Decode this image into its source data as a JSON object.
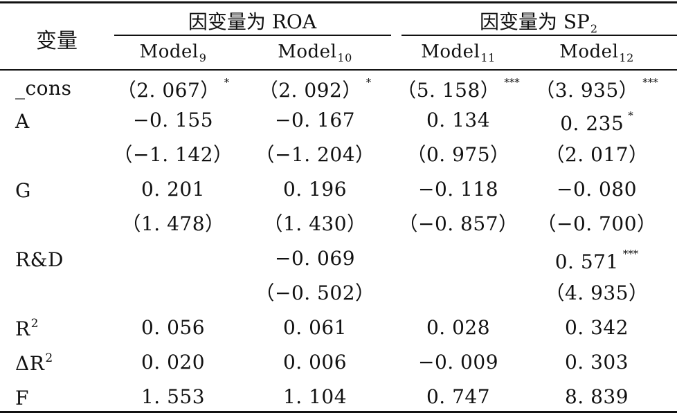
{
  "table": {
    "var_header": "变量",
    "groups": [
      {
        "title": "因变量为 ROA",
        "sub": ""
      },
      {
        "title": "因变量为 SP",
        "sub": "2"
      }
    ],
    "models": [
      {
        "name": "Model",
        "sub": "9"
      },
      {
        "name": "Model",
        "sub": "10"
      },
      {
        "name": "Model",
        "sub": "11"
      },
      {
        "name": "Model",
        "sub": "12"
      }
    ],
    "rows": [
      {
        "label": "_cons",
        "label_sup": "",
        "cells": [
          {
            "text": "（2. 067）",
            "stars": "*"
          },
          {
            "text": "（2. 092）",
            "stars": "*"
          },
          {
            "text": "（5. 158）",
            "stars": "***"
          },
          {
            "text": "（3. 935）",
            "stars": "***"
          }
        ]
      },
      {
        "label": "A",
        "label_sup": "",
        "cells": [
          {
            "text": "−0. 155",
            "stars": ""
          },
          {
            "text": "−0. 167",
            "stars": ""
          },
          {
            "text": "0. 134",
            "stars": ""
          },
          {
            "text": "0. 235",
            "stars": "*"
          }
        ]
      },
      {
        "label": "",
        "label_sup": "",
        "cells": [
          {
            "text": "（−1. 142）",
            "stars": ""
          },
          {
            "text": "（−1. 204）",
            "stars": ""
          },
          {
            "text": "（0. 975）",
            "stars": ""
          },
          {
            "text": "（2. 017）",
            "stars": ""
          }
        ]
      },
      {
        "label": "G",
        "label_sup": "",
        "cells": [
          {
            "text": "0. 201",
            "stars": ""
          },
          {
            "text": "0. 196",
            "stars": ""
          },
          {
            "text": "−0. 118",
            "stars": ""
          },
          {
            "text": "−0. 080",
            "stars": ""
          }
        ]
      },
      {
        "label": "",
        "label_sup": "",
        "cells": [
          {
            "text": "（1. 478）",
            "stars": ""
          },
          {
            "text": "（1. 430）",
            "stars": ""
          },
          {
            "text": "（−0. 857）",
            "stars": ""
          },
          {
            "text": "（−0. 700）",
            "stars": ""
          }
        ]
      },
      {
        "label": "R&D",
        "label_sup": "",
        "cells": [
          {
            "text": "",
            "stars": ""
          },
          {
            "text": "−0. 069",
            "stars": ""
          },
          {
            "text": "",
            "stars": ""
          },
          {
            "text": "0. 571",
            "stars": "***"
          }
        ]
      },
      {
        "label": "",
        "label_sup": "",
        "cells": [
          {
            "text": "",
            "stars": ""
          },
          {
            "text": "（−0. 502）",
            "stars": ""
          },
          {
            "text": "",
            "stars": ""
          },
          {
            "text": "（4. 935）",
            "stars": ""
          }
        ]
      },
      {
        "label": "R",
        "label_sup": "2",
        "cells": [
          {
            "text": "0. 056",
            "stars": ""
          },
          {
            "text": "0. 061",
            "stars": ""
          },
          {
            "text": "0. 028",
            "stars": ""
          },
          {
            "text": "0. 342",
            "stars": ""
          }
        ]
      },
      {
        "label": "ΔR",
        "label_sup": "2",
        "cells": [
          {
            "text": "0. 020",
            "stars": ""
          },
          {
            "text": "0. 006",
            "stars": ""
          },
          {
            "text": "−0. 009",
            "stars": ""
          },
          {
            "text": "0. 303",
            "stars": ""
          }
        ]
      },
      {
        "label": "F",
        "label_sup": "",
        "cells": [
          {
            "text": "1. 553",
            "stars": ""
          },
          {
            "text": "1. 104",
            "stars": ""
          },
          {
            "text": "0. 747",
            "stars": ""
          },
          {
            "text": "8. 839",
            "stars": ""
          }
        ]
      }
    ]
  }
}
